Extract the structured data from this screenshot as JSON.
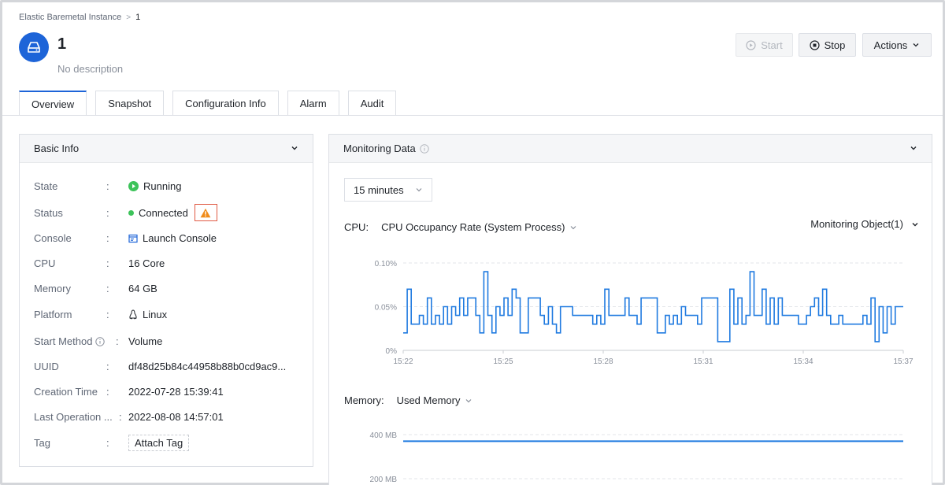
{
  "breadcrumb": {
    "parent": "Elastic Baremetal Instance",
    "separator": ">",
    "current": "1"
  },
  "instance": {
    "name": "1",
    "description": "No description",
    "icon": "server-icon"
  },
  "header_buttons": {
    "start": "Start",
    "stop": "Stop",
    "actions": "Actions"
  },
  "tabs": [
    {
      "label": "Overview",
      "active": true
    },
    {
      "label": "Snapshot"
    },
    {
      "label": "Configuration Info"
    },
    {
      "label": "Alarm"
    },
    {
      "label": "Audit"
    }
  ],
  "basic_info": {
    "title": "Basic Info",
    "rows": {
      "state": {
        "label": "State",
        "value": "Running"
      },
      "status": {
        "label": "Status",
        "value": "Connected"
      },
      "console": {
        "label": "Console",
        "value": "Launch Console"
      },
      "cpu": {
        "label": "CPU",
        "value": "16 Core"
      },
      "memory": {
        "label": "Memory",
        "value": "64 GB"
      },
      "platform": {
        "label": "Platform",
        "value": "Linux"
      },
      "start_method": {
        "label": "Start Method",
        "value": "Volume"
      },
      "uuid": {
        "label": "UUID",
        "value": "df48d25b84c44958b88b0cd9ac9..."
      },
      "creation_time": {
        "label": "Creation Time",
        "value": "2022-07-28 15:39:41"
      },
      "last_operation": {
        "label": "Last Operation ...",
        "value": "2022-08-08 14:57:01"
      },
      "tag": {
        "label": "Tag",
        "value": "Attach Tag"
      }
    },
    "colon": ":"
  },
  "monitoring": {
    "title": "Monitoring Data",
    "time_range": "15 minutes",
    "cpu_label": "CPU:",
    "cpu_metric": "CPU Occupancy Rate (System Process)",
    "monitoring_object": "Monitoring Object(1)",
    "memory_label": "Memory:",
    "memory_metric": "Used Memory"
  },
  "colors": {
    "accent": "#1d64d8",
    "running": "#3dc35a",
    "warning": "#f08c1b",
    "line": "#1f7ae0"
  },
  "chart_data": [
    {
      "type": "line",
      "title": "",
      "ylabel": "",
      "y_ticks": [
        "0%",
        "0.05%",
        "0.10%"
      ],
      "ylim": [
        0,
        0.1
      ],
      "x_ticks": [
        "15:22",
        "15:25",
        "15:28",
        "15:31",
        "15:34",
        "15:37"
      ],
      "series": [
        {
          "values": [
            0.02,
            0.07,
            0.03,
            0.03,
            0.04,
            0.03,
            0.06,
            0.03,
            0.04,
            0.03,
            0.05,
            0.03,
            0.05,
            0.04,
            0.06,
            0.04,
            0.06,
            0.06,
            0.04,
            0.02,
            0.09,
            0.04,
            0.02,
            0.05,
            0.04,
            0.06,
            0.04,
            0.07,
            0.06,
            0.02,
            0.02,
            0.06,
            0.06,
            0.06,
            0.04,
            0.03,
            0.05,
            0.03,
            0.02,
            0.05,
            0.05,
            0.05,
            0.04,
            0.04,
            0.04,
            0.04,
            0.04,
            0.03,
            0.04,
            0.03,
            0.07,
            0.04,
            0.04,
            0.04,
            0.04,
            0.06,
            0.04,
            0.04,
            0.03,
            0.06,
            0.06,
            0.06,
            0.06,
            0.02,
            0.02,
            0.04,
            0.03,
            0.04,
            0.03,
            0.05,
            0.04,
            0.04,
            0.04,
            0.03,
            0.06,
            0.06,
            0.06,
            0.06,
            0.01,
            0.01,
            0.01,
            0.07,
            0.03,
            0.06,
            0.03,
            0.04,
            0.09,
            0.04,
            0.04,
            0.07,
            0.03,
            0.06,
            0.03,
            0.06,
            0.04,
            0.04,
            0.04,
            0.04,
            0.03,
            0.03,
            0.04,
            0.05,
            0.06,
            0.04,
            0.07,
            0.04,
            0.03,
            0.03,
            0.04,
            0.03,
            0.03,
            0.03,
            0.03,
            0.03,
            0.04,
            0.03,
            0.06,
            0.01,
            0.05,
            0.02,
            0.05,
            0.03,
            0.05,
            0.05
          ]
        }
      ]
    },
    {
      "type": "line",
      "title": "",
      "y_ticks": [
        "200 MB",
        "400 MB"
      ],
      "series": [
        {
          "values": [
            370,
            370,
            370,
            370,
            370,
            370
          ]
        }
      ]
    }
  ]
}
